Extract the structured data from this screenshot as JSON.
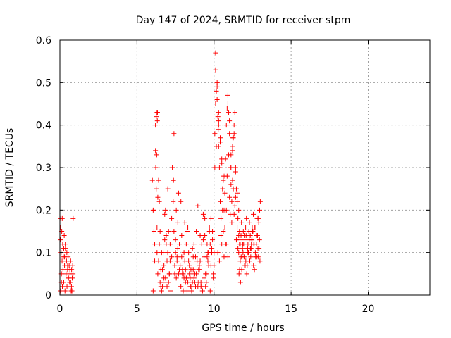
{
  "chart_data": {
    "type": "scatter",
    "title": "Day 147 of 2024, SRMTID for receiver stpm",
    "xlabel": "GPS time / hours",
    "ylabel": "SRMTID / TECUs",
    "xlim": [
      0,
      24
    ],
    "ylim": [
      0,
      0.6
    ],
    "xticks": [
      0,
      5,
      10,
      15,
      20
    ],
    "yticks": [
      0,
      0.1,
      0.2,
      0.3,
      0.4,
      0.5,
      0.6
    ],
    "ytick_labels": [
      "0",
      "0.1",
      "0.2",
      "0.3",
      "0.4",
      "0.5",
      "0.6"
    ],
    "grid": true,
    "marker": "plus",
    "series_color": "#ff0000",
    "series": [
      {
        "x": [
          0.02,
          0.04,
          0.06,
          0.08,
          0.1,
          0.12,
          0.14,
          0.16,
          0.18,
          0.2,
          0.22,
          0.25,
          0.28,
          0.3,
          0.33,
          0.36,
          0.4,
          0.43,
          0.46,
          0.5,
          0.53,
          0.56,
          0.6,
          0.63,
          0.66,
          0.7,
          0.73,
          0.76,
          0.8,
          0.83,
          0.86,
          0.15,
          0.35,
          0.55,
          0.75,
          0.25,
          0.45,
          0.65,
          0.85,
          0.05,
          0.1,
          0.3,
          0.5,
          0.7,
          0.78,
          6.0,
          6.05,
          6.1,
          6.15,
          6.2,
          6.25,
          6.3,
          6.35,
          6.4,
          6.45,
          6.5,
          6.55,
          6.6,
          6.65,
          6.7,
          6.75,
          6.8,
          6.85,
          6.9,
          6.95,
          7.0,
          7.05,
          7.1,
          7.15,
          7.2,
          7.25,
          7.3,
          7.35,
          7.4,
          7.45,
          7.5,
          7.55,
          7.6,
          7.65,
          7.7,
          7.75,
          7.8,
          7.85,
          7.9,
          7.95,
          8.0,
          8.05,
          8.1,
          8.15,
          8.2,
          8.25,
          8.3,
          8.35,
          8.4,
          8.45,
          8.5,
          8.55,
          8.6,
          8.65,
          8.7,
          8.75,
          8.8,
          8.85,
          8.9,
          8.95,
          9.0,
          9.05,
          9.1,
          9.15,
          9.2,
          9.25,
          9.3,
          9.35,
          9.4,
          9.45,
          9.5,
          9.55,
          9.6,
          9.65,
          9.7,
          9.75,
          9.8,
          9.85,
          9.9,
          9.95,
          6.1,
          6.2,
          6.25,
          6.3,
          6.35,
          6.4,
          6.5,
          6.6,
          6.7,
          6.8,
          6.9,
          7.0,
          7.1,
          7.2,
          7.3,
          7.35,
          7.4,
          7.5,
          7.6,
          7.7,
          7.8,
          7.9,
          8.0,
          8.1,
          8.2,
          8.3,
          8.4,
          8.5,
          8.6,
          8.7,
          8.8,
          8.9,
          9.0,
          9.1,
          9.2,
          9.3,
          9.4,
          9.5,
          9.6,
          9.7,
          9.8,
          9.9,
          6.05,
          6.15,
          6.22,
          6.28,
          6.33,
          6.45,
          6.55,
          6.65,
          6.75,
          6.85,
          6.95,
          7.05,
          7.15,
          7.25,
          7.45,
          7.55,
          7.65,
          7.75,
          7.85,
          7.95,
          8.05,
          8.15,
          8.25,
          8.35,
          8.45,
          8.55,
          8.65,
          8.75,
          8.85,
          8.95,
          9.05,
          9.15,
          9.25,
          9.35,
          9.45,
          9.55,
          9.65,
          9.75,
          9.85,
          9.95,
          10.0,
          10.05,
          10.1,
          10.15,
          10.2,
          10.25,
          10.3,
          10.35,
          10.4,
          10.45,
          10.5,
          10.55,
          10.6,
          10.65,
          10.7,
          10.75,
          10.8,
          10.85,
          10.9,
          10.95,
          11.0,
          11.05,
          11.1,
          11.15,
          11.2,
          11.25,
          11.3,
          11.35,
          11.4,
          11.45,
          11.5,
          11.55,
          11.6,
          11.65,
          11.7,
          10.1,
          10.2,
          10.3,
          10.4,
          10.5,
          10.6,
          10.7,
          10.8,
          10.9,
          11.0,
          11.1,
          11.2,
          11.3,
          11.4,
          11.5,
          11.6,
          10.05,
          10.15,
          10.25,
          10.35,
          10.45,
          10.55,
          10.65,
          10.75,
          10.85,
          10.95,
          11.05,
          11.15,
          11.25,
          11.35,
          11.45,
          11.55,
          10.0,
          10.1,
          10.2,
          10.3,
          10.4,
          10.5,
          10.6,
          10.7,
          10.8,
          10.9,
          11.0,
          11.1,
          11.2,
          11.3,
          11.4,
          11.5,
          11.6,
          11.65,
          11.7,
          11.75,
          11.8,
          11.85,
          11.9,
          11.95,
          12.0,
          12.05,
          12.1,
          12.15,
          12.2,
          12.25,
          12.3,
          12.35,
          12.4,
          12.45,
          12.5,
          12.55,
          12.6,
          12.65,
          12.7,
          12.75,
          12.8,
          12.85,
          12.9,
          12.95,
          13.0,
          11.62,
          11.72,
          11.82,
          11.92,
          12.02,
          12.12,
          12.22,
          12.32,
          12.42,
          12.52,
          12.62,
          12.72,
          12.82,
          12.92,
          11.68,
          11.78,
          11.88,
          11.98,
          12.08,
          12.18,
          12.28,
          12.38,
          12.48,
          12.58,
          12.68,
          12.78,
          12.88,
          12.98,
          11.66,
          11.76,
          11.86,
          11.96,
          12.06,
          12.16,
          12.26,
          12.36,
          12.46,
          12.56,
          12.66,
          12.76,
          12.86,
          12.96,
          6.3,
          6.32,
          7.32,
          7.37,
          10.3,
          10.27,
          11.22
        ],
        "y": [
          0.16,
          0.13,
          0.18,
          0.1,
          0.05,
          0.15,
          0.08,
          0.02,
          0.12,
          0.06,
          0.09,
          0.03,
          0.14,
          0.07,
          0.01,
          0.11,
          0.05,
          0.08,
          0.02,
          0.06,
          0.09,
          0.04,
          0.07,
          0.03,
          0.05,
          0.08,
          0.01,
          0.06,
          0.04,
          0.07,
          0.18,
          0.18,
          0.12,
          0.04,
          0.02,
          0.11,
          0.1,
          0.06,
          0.05,
          0.01,
          0.03,
          0.09,
          0.07,
          0.03,
          0.01,
          0.27,
          0.2,
          0.15,
          0.12,
          0.34,
          0.25,
          0.1,
          0.05,
          0.08,
          0.12,
          0.03,
          0.02,
          0.01,
          0.06,
          0.1,
          0.04,
          0.13,
          0.2,
          0.14,
          0.02,
          0.1,
          0.15,
          0.05,
          0.08,
          0.01,
          0.18,
          0.3,
          0.27,
          0.15,
          0.05,
          0.1,
          0.2,
          0.09,
          0.17,
          0.05,
          0.12,
          0.02,
          0.22,
          0.09,
          0.06,
          0.01,
          0.04,
          0.08,
          0.03,
          0.12,
          0.15,
          0.03,
          0.1,
          0.05,
          0.02,
          0.06,
          0.01,
          0.03,
          0.09,
          0.12,
          0.05,
          0.02,
          0.15,
          0.08,
          0.21,
          0.03,
          0.06,
          0.14,
          0.02,
          0.12,
          0.01,
          0.19,
          0.09,
          0.14,
          0.05,
          0.03,
          0.12,
          0.08,
          0.1,
          0.16,
          0.01,
          0.18,
          0.11,
          0.15,
          0.04,
          0.2,
          0.4,
          0.42,
          0.16,
          0.23,
          0.27,
          0.15,
          0.1,
          0.03,
          0.19,
          0.12,
          0.25,
          0.05,
          0.12,
          0.3,
          0.22,
          0.38,
          0.13,
          0.08,
          0.24,
          0.07,
          0.14,
          0.05,
          0.17,
          0.04,
          0.16,
          0.07,
          0.02,
          0.11,
          0.04,
          0.09,
          0.03,
          0.06,
          0.08,
          0.02,
          0.13,
          0.18,
          0.05,
          0.1,
          0.15,
          0.07,
          0.13,
          0.01,
          0.08,
          0.3,
          0.33,
          0.43,
          0.22,
          0.06,
          0.02,
          0.07,
          0.04,
          0.08,
          0.03,
          0.12,
          0.09,
          0.07,
          0.04,
          0.11,
          0.06,
          0.02,
          0.05,
          0.1,
          0.06,
          0.01,
          0.08,
          0.04,
          0.01,
          0.06,
          0.03,
          0.05,
          0.02,
          0.07,
          0.03,
          0.01,
          0.04,
          0.02,
          0.09,
          0.07,
          0.12,
          0.1,
          0.05,
          0.07,
          0.38,
          0.45,
          0.48,
          0.5,
          0.42,
          0.35,
          0.3,
          0.22,
          0.18,
          0.12,
          0.25,
          0.15,
          0.2,
          0.28,
          0.32,
          0.4,
          0.44,
          0.47,
          0.43,
          0.38,
          0.3,
          0.26,
          0.22,
          0.35,
          0.37,
          0.4,
          0.43,
          0.3,
          0.25,
          0.22,
          0.18,
          0.2,
          0.15,
          0.12,
          0.53,
          0.46,
          0.4,
          0.36,
          0.32,
          0.28,
          0.24,
          0.2,
          0.45,
          0.41,
          0.33,
          0.27,
          0.19,
          0.23,
          0.16,
          0.14,
          0.3,
          0.35,
          0.1,
          0.08,
          0.14,
          0.2,
          0.09,
          0.12,
          0.28,
          0.33,
          0.19,
          0.17,
          0.25,
          0.21,
          0.13,
          0.11,
          0.1,
          0.57,
          0.49,
          0.43,
          0.37,
          0.31,
          0.27,
          0.16,
          0.12,
          0.09,
          0.23,
          0.3,
          0.34,
          0.38,
          0.29,
          0.24,
          0.1,
          0.12,
          0.08,
          0.14,
          0.06,
          0.11,
          0.15,
          0.09,
          0.13,
          0.16,
          0.18,
          0.07,
          0.12,
          0.1,
          0.17,
          0.14,
          0.11,
          0.13,
          0.15,
          0.19,
          0.12,
          0.16,
          0.09,
          0.14,
          0.18,
          0.11,
          0.17,
          0.13,
          0.22,
          0.05,
          0.03,
          0.09,
          0.12,
          0.07,
          0.05,
          0.1,
          0.08,
          0.12,
          0.15,
          0.06,
          0.09,
          0.14,
          0.11,
          0.13,
          0.17,
          0.1,
          0.07,
          0.14,
          0.11,
          0.13,
          0.09,
          0.16,
          0.12,
          0.1,
          0.14,
          0.18,
          0.08,
          0.06,
          0.09,
          0.12,
          0.14,
          0.08,
          0.1,
          0.15,
          0.11,
          0.13,
          0.07,
          0.16,
          0.12,
          0.09,
          0.2,
          0.43,
          0.41,
          0.3,
          0.27,
          0.41,
          0.39,
          0.37
        ]
      }
    ]
  }
}
